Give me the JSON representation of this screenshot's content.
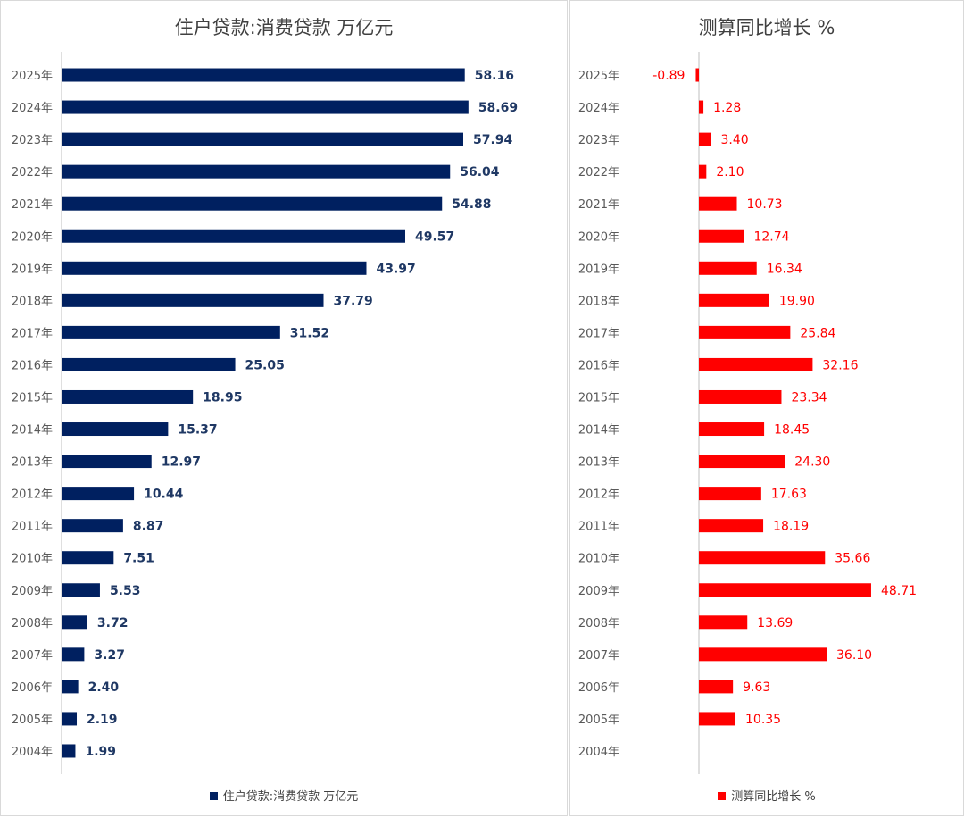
{
  "chart_data": [
    {
      "type": "bar",
      "orientation": "horizontal",
      "title": "住户贷款:消费贷款 万亿元",
      "categories": [
        "2025年",
        "2024年",
        "2023年",
        "2022年",
        "2021年",
        "2020年",
        "2019年",
        "2018年",
        "2017年",
        "2016年",
        "2015年",
        "2014年",
        "2013年",
        "2012年",
        "2011年",
        "2010年",
        "2009年",
        "2008年",
        "2007年",
        "2006年",
        "2005年",
        "2004年"
      ],
      "values": [
        58.16,
        58.69,
        57.94,
        56.04,
        54.88,
        49.57,
        43.97,
        37.79,
        31.52,
        25.05,
        18.95,
        15.37,
        12.97,
        10.44,
        8.87,
        7.51,
        5.53,
        3.72,
        3.27,
        2.4,
        2.19,
        1.99
      ],
      "labels": [
        "58.16",
        "58.69",
        "57.94",
        "56.04",
        "54.88",
        "49.57",
        "43.97",
        "37.79",
        "31.52",
        "25.05",
        "18.95",
        "15.37",
        "12.97",
        "10.44",
        "8.87",
        "7.51",
        "5.53",
        "3.72",
        "3.27",
        "2.40",
        "2.19",
        "1.99"
      ],
      "series": [
        {
          "name": "住户贷款:消费贷款 万亿元"
        }
      ],
      "color": "#002060",
      "xlim": [
        0,
        60
      ],
      "legend_position": "bottom"
    },
    {
      "type": "bar",
      "orientation": "horizontal",
      "title": "测算同比增长 %",
      "categories": [
        "2025年",
        "2024年",
        "2023年",
        "2022年",
        "2021年",
        "2020年",
        "2019年",
        "2018年",
        "2017年",
        "2016年",
        "2015年",
        "2014年",
        "2013年",
        "2012年",
        "2011年",
        "2010年",
        "2009年",
        "2008年",
        "2007年",
        "2006年",
        "2005年",
        "2004年"
      ],
      "values": [
        -0.89,
        1.28,
        3.4,
        2.1,
        10.73,
        12.74,
        16.34,
        19.9,
        25.84,
        32.16,
        23.34,
        18.45,
        24.3,
        17.63,
        18.19,
        35.66,
        48.71,
        13.69,
        36.1,
        9.63,
        10.35,
        null
      ],
      "labels": [
        "-0.89",
        "1.28",
        "3.40",
        "2.10",
        "10.73",
        "12.74",
        "16.34",
        "19.90",
        "25.84",
        "32.16",
        "23.34",
        "18.45",
        "24.30",
        "17.63",
        "18.19",
        "35.66",
        "48.71",
        "13.69",
        "36.10",
        "9.63",
        "10.35",
        ""
      ],
      "series": [
        {
          "name": "测算同比增长 %"
        }
      ],
      "color": "#ff0000",
      "xlim": [
        -2,
        50
      ],
      "legend_position": "bottom"
    }
  ]
}
